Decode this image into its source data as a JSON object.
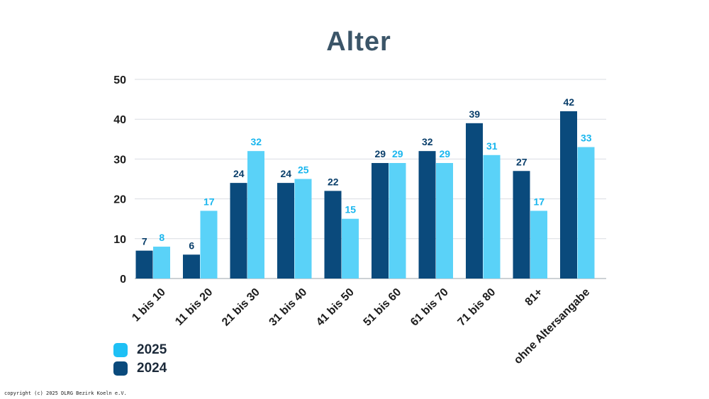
{
  "chart_data": {
    "type": "bar",
    "title": "Alter",
    "categories": [
      "1 bis 10",
      "11 bis 20",
      "21 bis 30",
      "31 bis 40",
      "41 bis 50",
      "51 bis 60",
      "61 bis 70",
      "71 bis 80",
      "81+",
      "ohne Altersangabe"
    ],
    "series": [
      {
        "name": "2024",
        "color": "#0a4a7c",
        "label_color": "#0a3f6b",
        "values": [
          7,
          6,
          24,
          24,
          22,
          29,
          32,
          39,
          27,
          42
        ]
      },
      {
        "name": "2025",
        "color": "#5ad2f8",
        "label_color": "#19b6ee",
        "values": [
          8,
          17,
          32,
          25,
          15,
          29,
          29,
          31,
          17,
          33
        ]
      }
    ],
    "ylim": [
      0,
      50
    ],
    "yticks": [
      0,
      10,
      20,
      30,
      40,
      50
    ],
    "grid": true,
    "legend": {
      "placement": "bottom-left",
      "items": [
        {
          "label": "2025",
          "color": "#1ec0f5"
        },
        {
          "label": "2024",
          "color": "#0a4a7c"
        }
      ]
    }
  },
  "footer": {
    "copyright": "copyright (c) 2025 DLRG Bezirk Koeln e.V."
  }
}
